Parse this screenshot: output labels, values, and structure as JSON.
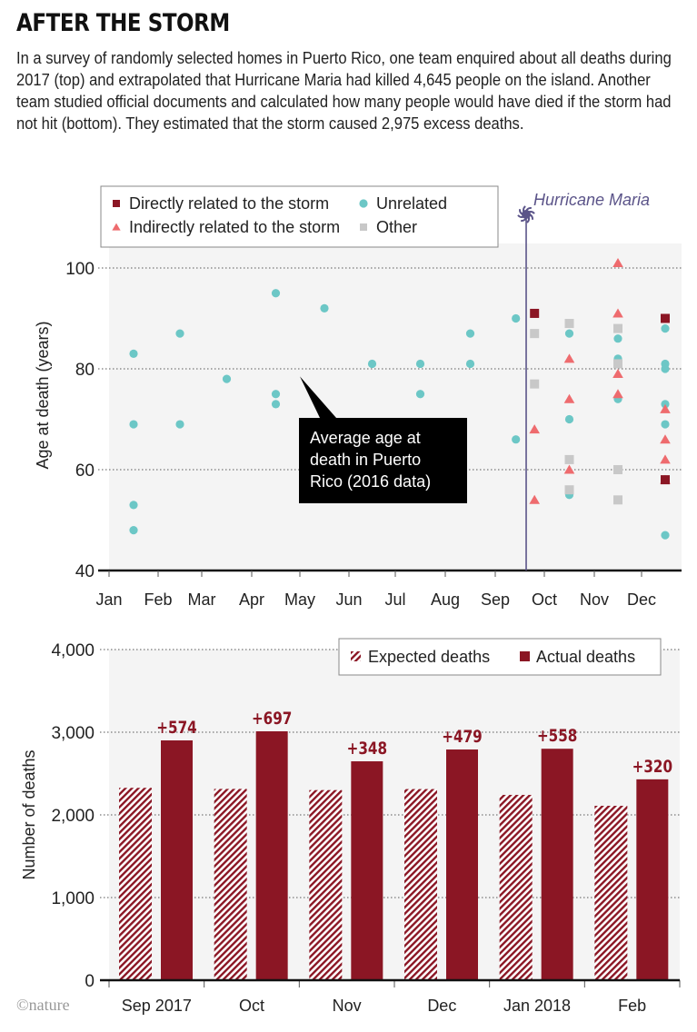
{
  "header": {
    "title": "AFTER THE STORM",
    "intro": "In a survey of randomly selected homes in Puerto Rico, one team enquired about all deaths during 2017 (top) and extrapolated that Hurricane Maria had killed 4,645 people on the island. Another team studied official documents and calculated how many people would have died if the storm had not hit (bottom). They estimated that the storm caused 2,975 excess deaths."
  },
  "credit": "©nature",
  "colors": {
    "direct": "#8B1624",
    "indirect": "#EE6B6E",
    "unrelated": "#6CC7C6",
    "other": "#C8C8C8",
    "hurricane": "#5B5489",
    "plot_bg": "#F4F4F4",
    "bar": "#8B1624"
  },
  "chart_data": [
    {
      "type": "scatter",
      "title": "",
      "xlabel": "",
      "ylabel": "Age at death (years)",
      "ylim": [
        40,
        105
      ],
      "yticks": [
        40,
        60,
        80,
        100
      ],
      "xlim": [
        1,
        13
      ],
      "xticks": [
        {
          "value": 1,
          "label": "Jan"
        },
        {
          "value": 2,
          "label": "Feb"
        },
        {
          "value": 3,
          "label": "Mar"
        },
        {
          "value": 4,
          "label": "Apr"
        },
        {
          "value": 5,
          "label": "May"
        },
        {
          "value": 6,
          "label": "Jun"
        },
        {
          "value": 7,
          "label": "Jul"
        },
        {
          "value": 8,
          "label": "Aug"
        },
        {
          "value": 9,
          "label": "Sep"
        },
        {
          "value": 10,
          "label": "Oct"
        },
        {
          "value": 11,
          "label": "Nov"
        },
        {
          "value": 12,
          "label": "Dec"
        }
      ],
      "grid": true,
      "legend": [
        {
          "key": "direct",
          "label": "Directly related to the storm",
          "marker": "square"
        },
        {
          "key": "unrelated",
          "label": "Unrelated",
          "marker": "circle"
        },
        {
          "key": "indirect",
          "label": "Indirectly related to the storm",
          "marker": "triangle"
        },
        {
          "key": "other",
          "label": "Other",
          "marker": "square"
        }
      ],
      "legend_position": "top-left",
      "event_line": {
        "x": 9.63,
        "label": "Hurricane Maria"
      },
      "annotation": {
        "text_lines": [
          "Average age at",
          "death in Puerto",
          "Rico (2016 data)"
        ],
        "x": 5.0,
        "y": 78.5
      },
      "series": [
        {
          "key": "unrelated",
          "name": "Unrelated",
          "points": [
            [
              1.5,
              83
            ],
            [
              1.5,
              69
            ],
            [
              1.5,
              53
            ],
            [
              1.5,
              48
            ],
            [
              2.5,
              87
            ],
            [
              2.5,
              69
            ],
            [
              3.5,
              78
            ],
            [
              4.5,
              95
            ],
            [
              4.5,
              75
            ],
            [
              4.5,
              73
            ],
            [
              5.5,
              92
            ],
            [
              6.5,
              81
            ],
            [
              7.5,
              81
            ],
            [
              7.5,
              75
            ],
            [
              8.5,
              87
            ],
            [
              8.5,
              81
            ],
            [
              9.42,
              90
            ],
            [
              9.42,
              66
            ],
            [
              10.5,
              87
            ],
            [
              10.5,
              70
            ],
            [
              10.5,
              55
            ],
            [
              11.5,
              86
            ],
            [
              11.5,
              82
            ],
            [
              11.5,
              74
            ],
            [
              12.5,
              88
            ],
            [
              12.5,
              81
            ],
            [
              12.5,
              80
            ],
            [
              12.5,
              73
            ],
            [
              12.5,
              69
            ],
            [
              12.5,
              47
            ]
          ]
        },
        {
          "key": "indirect",
          "name": "Indirectly related to the storm",
          "points": [
            [
              9.8,
              68
            ],
            [
              9.8,
              54
            ],
            [
              10.5,
              82
            ],
            [
              10.5,
              74
            ],
            [
              10.5,
              60
            ],
            [
              11.5,
              101
            ],
            [
              11.5,
              91
            ],
            [
              11.5,
              79
            ],
            [
              11.5,
              75
            ],
            [
              12.5,
              72
            ],
            [
              12.5,
              66
            ],
            [
              12.5,
              62
            ],
            [
              12.5,
              58
            ]
          ]
        },
        {
          "key": "other",
          "name": "Other",
          "points": [
            [
              9.8,
              87
            ],
            [
              9.8,
              77
            ],
            [
              10.5,
              89
            ],
            [
              10.5,
              62
            ],
            [
              10.5,
              56
            ],
            [
              11.5,
              88
            ],
            [
              11.5,
              81
            ],
            [
              11.5,
              60
            ],
            [
              11.5,
              54
            ]
          ]
        },
        {
          "key": "direct",
          "name": "Directly related to the storm",
          "points": [
            [
              9.8,
              91
            ],
            [
              12.5,
              90
            ],
            [
              12.5,
              58
            ]
          ]
        }
      ]
    },
    {
      "type": "bar",
      "title": "",
      "xlabel": "",
      "ylabel": "Number of deaths",
      "ylim": [
        0,
        4000
      ],
      "yticks": [
        {
          "value": 0,
          "label": "0"
        },
        {
          "value": 1000,
          "label": "1,000"
        },
        {
          "value": 2000,
          "label": "2,000"
        },
        {
          "value": 3000,
          "label": "3,000"
        },
        {
          "value": 4000,
          "label": "4,000"
        }
      ],
      "grid": true,
      "legend_position": "top-right",
      "categories": [
        "Sep 2017",
        "Oct",
        "Nov",
        "Dec",
        "Jan 2018",
        "Feb"
      ],
      "series": [
        {
          "name": "Expected deaths",
          "style": "hatched",
          "values": [
            2327,
            2314,
            2300,
            2312,
            2242,
            2110
          ]
        },
        {
          "name": "Actual deaths",
          "style": "solid",
          "values": [
            2901,
            3011,
            2648,
            2791,
            2800,
            2430
          ]
        }
      ],
      "data_labels": [
        "+574",
        "+697",
        "+348",
        "+479",
        "+558",
        "+320"
      ]
    }
  ]
}
